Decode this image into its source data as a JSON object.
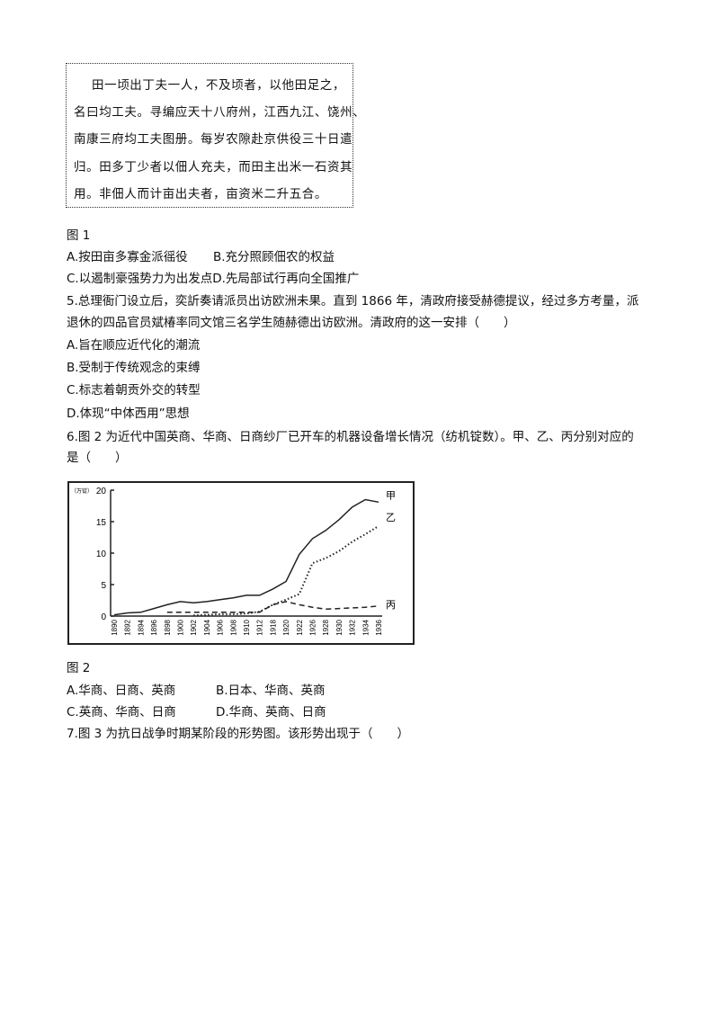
{
  "figure1": {
    "quote_lines": [
      "田一顷出丁夫一人，不及顷者，以他田足之，",
      "名曰均工夫。寻编应天十八府州，江西九江、饶州、",
      "南康三府均工夫图册。每岁农隙赴京供役三十日遣",
      "归。田多丁少者以佃人充夫，而田主出米一石资其",
      "用。非佃人而计亩出夫者，亩资米二升五合。"
    ],
    "caption": "图 1"
  },
  "q4_options": {
    "A": "A.按田亩多寡金派徭役",
    "B": "B.充分照顾佃农的权益",
    "CD": "C.以遏制豪强势力为出发点D.先局部试行再向全国推广"
  },
  "q5": {
    "stem_line1": "5.总理衙门设立后，奕訢奏请派员出访欧洲未果。直到 1866 年，清政府接受赫德提议，经过多方考量，派",
    "stem_line2": "退休的四品官员斌椿率同文馆三名学生随赫德出访欧洲。清政府的这一安排（　　）",
    "options": [
      "A.旨在顺应近代化的潮流",
      "B.受制于传统观念的束缚",
      "C.标志着朝贡外交的转型",
      "D.体现“中体西用”思想"
    ]
  },
  "q6": {
    "stem_line1": "6.图 2 为近代中国英商、华商、日商纱厂已开车的机器设备增长情况（纺机锭数）。甲、乙、丙分别对应的",
    "stem_line2": "是（　　）",
    "caption": "图 2",
    "options": {
      "A": "A.华商、日商、英商",
      "B": "B.日本、华商、英商",
      "C": "C.英商、华商、日商",
      "D": "D.华商、英商、日商"
    }
  },
  "q7": {
    "stem": "7.图 3 为抗日战争时期某阶段的形势图。该形势出现于（　　）"
  },
  "chart_data": {
    "type": "line",
    "ylabel": "（万锭）",
    "ylim": [
      0,
      20
    ],
    "yticks": [
      0,
      5,
      10,
      15,
      20
    ],
    "categories": [
      "1890",
      "1892",
      "1894",
      "1896",
      "1898",
      "1900",
      "1902",
      "1904",
      "1906",
      "1908",
      "1910",
      "1912",
      "1918",
      "1920",
      "1922",
      "1926",
      "1928",
      "1930",
      "1932",
      "1934",
      "1936"
    ],
    "grid": false,
    "series": [
      {
        "name": "甲",
        "style": "solid",
        "values": [
          0.2,
          0.5,
          0.6,
          1.2,
          1.8,
          2.3,
          2.1,
          2.3,
          2.6,
          2.9,
          3.3,
          3.3,
          4.3,
          5.5,
          9.8,
          12.3,
          13.6,
          15.3,
          17.3,
          18.5,
          18.1
        ]
      },
      {
        "name": "乙",
        "style": "dotted",
        "values": [
          null,
          null,
          null,
          null,
          null,
          null,
          0.1,
          0.2,
          0.3,
          0.3,
          0.4,
          0.7,
          1.8,
          2.6,
          3.5,
          8.4,
          9.2,
          10.3,
          11.8,
          13.0,
          14.3
        ]
      },
      {
        "name": "丙",
        "style": "dashed",
        "values": [
          null,
          null,
          null,
          null,
          0.6,
          0.6,
          0.6,
          0.6,
          0.6,
          0.6,
          0.6,
          0.6,
          1.8,
          2.3,
          1.8,
          1.4,
          1.1,
          1.2,
          1.3,
          1.4,
          1.6
        ]
      }
    ]
  }
}
